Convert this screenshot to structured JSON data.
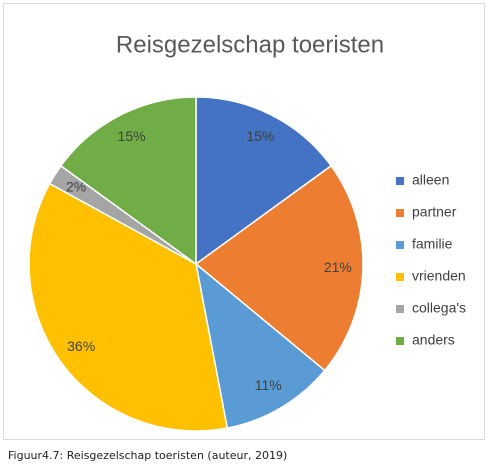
{
  "chart_data": {
    "type": "pie",
    "title": "Reisgezelschap toeristen",
    "categories": [
      "alleen",
      "partner",
      "familie",
      "vrienden",
      "collega's",
      "anders"
    ],
    "values": [
      15,
      21,
      11,
      36,
      2,
      15
    ],
    "value_labels": [
      "15%",
      "21%",
      "11%",
      "36%",
      "2%",
      "15%"
    ],
    "colors": [
      "#4472c4",
      "#ed7d31",
      "#5b9bd5",
      "#ffc000",
      "#a5a5a5",
      "#70ad47"
    ],
    "legend": "right"
  },
  "caption": "Figuur4.7: Reisgezelschap toeristen (auteur, 2019)"
}
